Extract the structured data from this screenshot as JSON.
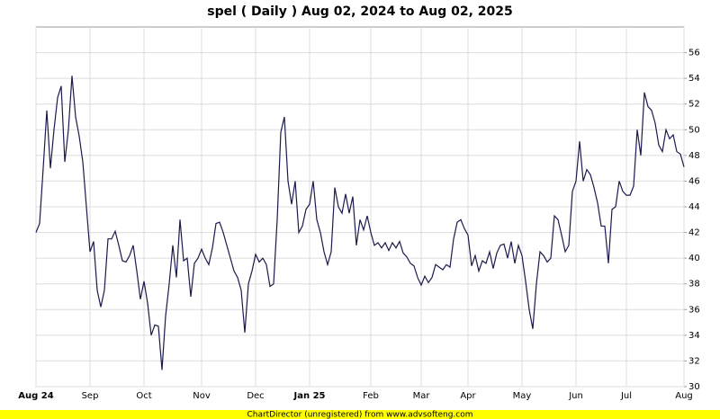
{
  "chart_data": {
    "type": "line",
    "title": "spel ( Daily ) Aug 02, 2024 to Aug 02, 2025",
    "footer": "ChartDirector (unregistered) from www.advsofteng.com",
    "categories": [
      "Aug 24",
      null,
      null,
      null,
      null,
      null,
      null,
      null,
      null,
      null,
      null,
      null,
      null,
      null,
      null,
      "Sep",
      null,
      null,
      null,
      null,
      null,
      null,
      null,
      null,
      null,
      null,
      null,
      null,
      null,
      null,
      "Oct",
      null,
      null,
      null,
      null,
      null,
      null,
      null,
      null,
      null,
      null,
      null,
      null,
      null,
      null,
      null,
      "Nov",
      null,
      null,
      null,
      null,
      null,
      null,
      null,
      null,
      null,
      null,
      null,
      null,
      null,
      null,
      "Dec",
      null,
      null,
      null,
      null,
      null,
      null,
      null,
      null,
      null,
      null,
      null,
      null,
      null,
      null,
      "Jan 25",
      null,
      null,
      null,
      null,
      null,
      null,
      null,
      null,
      null,
      null,
      null,
      null,
      null,
      null,
      null,
      null,
      "Feb",
      null,
      null,
      null,
      null,
      null,
      null,
      null,
      null,
      null,
      null,
      null,
      null,
      null,
      "Mar",
      null,
      null,
      null,
      null,
      null,
      null,
      null,
      null,
      null,
      null,
      null,
      null,
      "Apr",
      null,
      null,
      null,
      null,
      null,
      null,
      null,
      null,
      null,
      null,
      null,
      null,
      null,
      null,
      "May",
      null,
      null,
      null,
      null,
      null,
      null,
      null,
      null,
      null,
      null,
      null,
      null,
      null,
      null,
      "Jun",
      null,
      null,
      null,
      null,
      null,
      null,
      null,
      null,
      null,
      null,
      null,
      null,
      null,
      "Jul",
      null,
      null,
      null,
      null,
      null,
      null,
      null,
      null,
      null,
      null,
      null,
      null,
      null,
      null,
      null,
      "Aug"
    ],
    "series": [
      {
        "color": "#1a1a4e",
        "values": [
          42,
          42.7,
          47,
          51.5,
          47,
          50,
          52.5,
          53.4,
          47.5,
          50,
          54.2,
          51,
          49.5,
          47.5,
          44,
          40.5,
          41.3,
          37.5,
          36.2,
          37.5,
          41.5,
          41.5,
          42.1,
          41,
          39.8,
          39.7,
          40.2,
          41,
          39,
          36.8,
          38.2,
          36.5,
          34,
          34.8,
          34.7,
          31.3,
          35.5,
          38,
          41,
          38.5,
          43,
          39.8,
          40,
          37,
          39.6,
          40,
          40.7,
          40,
          39.5,
          40.8,
          42.7,
          42.8,
          42,
          41,
          40,
          39,
          38.5,
          37.5,
          34.2,
          38,
          39,
          40.3,
          39.7,
          40,
          39.5,
          37.8,
          38,
          43,
          49.8,
          51,
          46,
          44.2,
          46,
          42,
          42.5,
          43.8,
          44.2,
          46,
          43,
          42,
          40.5,
          39.5,
          40.5,
          45.5,
          44,
          43.5,
          45,
          43.5,
          44.8,
          41,
          43,
          42.2,
          43.3,
          42,
          41,
          41.2,
          40.8,
          41.2,
          40.6,
          41.2,
          40.8,
          41.3,
          40.4,
          40.1,
          39.6,
          39.4,
          38.5,
          37.9,
          38.6,
          38.1,
          38.5,
          39.5,
          39.3,
          39.1,
          39.5,
          39.3,
          41.5,
          42.8,
          43,
          42.3,
          41.8,
          39.4,
          40.2,
          39,
          39.8,
          39.6,
          40.5,
          39.2,
          40.4,
          41,
          41.1,
          40,
          41.3,
          39.6,
          41,
          40.2,
          38.2,
          36,
          34.5,
          38,
          40.5,
          40.2,
          39.7,
          40,
          43.3,
          43,
          41.8,
          40.5,
          41,
          45.2,
          46,
          49.1,
          46,
          46.9,
          46.5,
          45.5,
          44.3,
          42.5,
          42.5,
          39.6,
          43.8,
          44,
          46,
          45.2,
          44.9,
          44.9,
          45.6,
          50,
          48,
          52.9,
          51.8,
          51.5,
          50.5,
          48.8,
          48.3,
          50,
          49.3,
          49.6,
          48.3,
          48.1,
          47.1
        ]
      }
    ],
    "ylim": [
      30,
      58
    ],
    "yticks": [
      30,
      32,
      34,
      36,
      38,
      40,
      42,
      44,
      46,
      48,
      50,
      52,
      54,
      56
    ],
    "grid": true
  }
}
